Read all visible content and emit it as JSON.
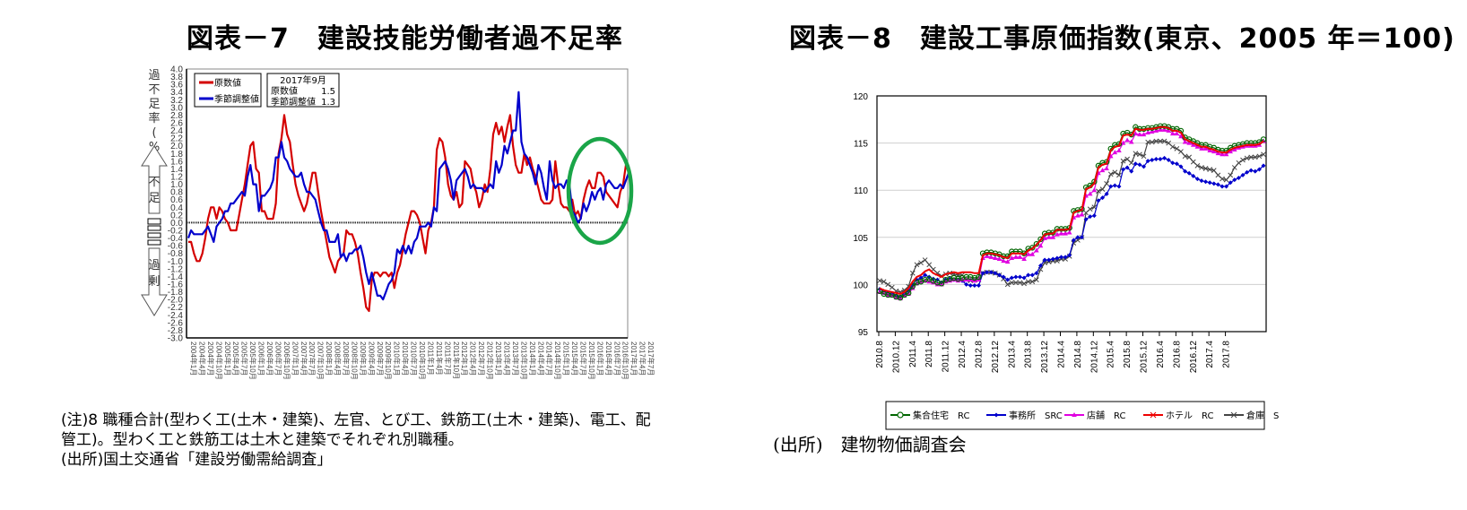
{
  "titles": {
    "left": "図表－7　建設技能労働者過不足率",
    "right": "図表－8　建設工事原価指数(東京、2005 年＝100)"
  },
  "notes": {
    "left_line1": "(注)8 職種合計(型わく工(土木・建築)、左官、とび工、鉄筋工(土木・建築)、電工、配",
    "left_line2": "管工)。型わく工と鉄筋工は土木と建築でそれぞれ別職種。",
    "left_line3": "(出所)国土交通省「建設労働需給調査」",
    "right_source": "(出所)　建物物価調査会"
  },
  "chart_data": [
    {
      "type": "line",
      "title": "図表－7　建設技能労働者過不足率",
      "ylabel": "過不足率(%)",
      "ylim": [
        -3.0,
        4.0
      ],
      "ytick_step": 0.2,
      "side_labels": {
        "up": "不足",
        "down": "過剰"
      },
      "x_start": "2004年1月",
      "x_end": "2017年9月",
      "x_tick_labels": [
        "2004年1月",
        "2004年4月",
        "2004年7月",
        "2004年10月",
        "2005年1月",
        "2005年4月",
        "2005年7月",
        "2005年10月",
        "2006年1月",
        "2006年4月",
        "2006年7月",
        "2006年10月",
        "2007年1月",
        "2007年4月",
        "2007年7月",
        "2007年10月",
        "2008年1月",
        "2008年4月",
        "2008年7月",
        "2008年10月",
        "2009年1月",
        "2009年4月",
        "2009年7月",
        "2009年10月",
        "2010年1月",
        "2010年4月",
        "2010年7月",
        "2010年10月",
        "2011年1月",
        "2011年4月",
        "2011年7月",
        "2011年10月",
        "2012年1月",
        "2012年4月",
        "2012年7月",
        "2012年10月",
        "2013年1月",
        "2013年4月",
        "2013年7月",
        "2013年10月",
        "2014年1月",
        "2014年4月",
        "2014年7月",
        "2014年10月",
        "2015年1月",
        "2015年4月",
        "2015年7月",
        "2015年10月",
        "2016年1月",
        "2016年4月",
        "2016年7月",
        "2016年10月",
        "2017年1月",
        "2017年4月",
        "2017年7月"
      ],
      "legend": [
        "原数値",
        "季節調整値"
      ],
      "annotation": {
        "heading": "2017年9月",
        "rows": [
          {
            "label": "原数値",
            "value": "1.5"
          },
          {
            "label": "季節調整値",
            "value": "1.3"
          }
        ]
      },
      "highlight": "green ellipse around 2016-2017",
      "series": [
        {
          "name": "原数値",
          "color": "#d40000",
          "values": [
            -0.5,
            -0.5,
            -0.8,
            -1.0,
            -1.0,
            -0.8,
            -0.4,
            0.1,
            0.4,
            0.4,
            0.1,
            0.4,
            0.3,
            0.1,
            0.0,
            -0.2,
            -0.2,
            -0.2,
            0.2,
            0.6,
            1.0,
            1.5,
            2.0,
            2.1,
            1.4,
            1.3,
            0.3,
            0.3,
            0.1,
            0.1,
            0.1,
            0.5,
            1.8,
            2.2,
            2.8,
            2.3,
            2.1,
            1.5,
            1.0,
            0.7,
            0.5,
            0.3,
            0.5,
            0.9,
            1.3,
            1.3,
            0.8,
            0.3,
            -0.1,
            -0.5,
            -0.9,
            -1.1,
            -1.3,
            -1.0,
            -0.9,
            -0.8,
            -0.2,
            -0.3,
            -0.3,
            -0.5,
            -0.8,
            -1.3,
            -1.7,
            -2.2,
            -2.3,
            -1.5,
            -1.3,
            -1.3,
            -1.4,
            -1.3,
            -1.3,
            -1.4,
            -1.3,
            -1.7,
            -1.3,
            -1.1,
            -0.7,
            -0.3,
            0.0,
            0.3,
            0.3,
            0.2,
            0.0,
            -0.4,
            -0.8,
            -0.2,
            0.0,
            0.4,
            1.9,
            2.2,
            2.1,
            1.7,
            1.0,
            0.7,
            0.6,
            0.8,
            0.4,
            0.5,
            1.6,
            1.5,
            1.4,
            1.0,
            0.8,
            0.4,
            0.6,
            1.0,
            0.8,
            1.4,
            2.3,
            2.6,
            2.3,
            2.5,
            2.1,
            2.5,
            2.8,
            2.0,
            1.5,
            1.3,
            1.3,
            1.8,
            1.5,
            1.7,
            1.4,
            1.2,
            0.9,
            0.6,
            0.5,
            0.5,
            0.5,
            0.6,
            1.6,
            1.0,
            0.5,
            0.4,
            0.4,
            0.3,
            0.6,
            0.2,
            0.3,
            0.1,
            0.6,
            0.9,
            1.1,
            0.9,
            0.9,
            1.3,
            1.3,
            1.2,
            0.8,
            0.7,
            0.6,
            0.5,
            0.4,
            0.8,
            1.0,
            1.5
          ]
        },
        {
          "name": "季節調整値",
          "color": "#0000cc",
          "values": [
            -0.4,
            -0.2,
            -0.3,
            -0.3,
            -0.3,
            -0.3,
            -0.2,
            -0.1,
            -0.3,
            -0.5,
            -0.1,
            0.0,
            0.1,
            0.3,
            0.3,
            0.5,
            0.5,
            0.6,
            0.7,
            0.8,
            0.7,
            1.2,
            1.5,
            1.0,
            1.0,
            0.3,
            0.7,
            0.7,
            0.8,
            0.9,
            1.1,
            1.7,
            1.7,
            2.1,
            1.7,
            1.6,
            1.4,
            1.3,
            1.2,
            1.2,
            1.3,
            1.0,
            0.8,
            0.8,
            0.7,
            0.6,
            0.3,
            0.0,
            -0.2,
            -0.2,
            -0.5,
            -0.5,
            -0.5,
            -0.3,
            -0.9,
            -0.8,
            -1.0,
            -0.8,
            -0.8,
            -0.7,
            -0.7,
            -0.6,
            -0.9,
            -1.3,
            -1.6,
            -1.3,
            -1.6,
            -1.9,
            -1.9,
            -2.0,
            -1.8,
            -1.6,
            -1.5,
            -1.3,
            -0.7,
            -0.8,
            -0.6,
            -0.8,
            -0.6,
            -0.8,
            -0.5,
            -0.4,
            -0.1,
            -0.1,
            -0.1,
            0.0,
            -0.1,
            0.4,
            0.3,
            1.4,
            1.5,
            1.6,
            1.4,
            1.1,
            0.6,
            1.1,
            1.2,
            1.3,
            1.4,
            1.2,
            0.9,
            1.0,
            0.9,
            0.9,
            0.9,
            0.8,
            0.9,
            1.0,
            0.9,
            1.6,
            1.3,
            1.5,
            2.0,
            1.8,
            2.1,
            2.4,
            2.4,
            3.4,
            2.1,
            1.8,
            1.7,
            1.5,
            1.3,
            1.0,
            1.5,
            1.3,
            0.9,
            0.6,
            1.6,
            1.1,
            0.9,
            1.0,
            1.0,
            0.9,
            1.1,
            1.0,
            0.3,
            0.2,
            0.0,
            0.1,
            0.5,
            0.3,
            0.5,
            0.8,
            0.6,
            0.8,
            0.9,
            0.6,
            1.0,
            1.1,
            1.0,
            0.9,
            0.9,
            1.0,
            0.9,
            1.1,
            1.3
          ]
        }
      ]
    },
    {
      "type": "line",
      "title": "図表－8　建設工事原価指数(東京、2005 年＝100)",
      "ylim": [
        95,
        120
      ],
      "yticks": [
        95,
        100,
        105,
        110,
        115,
        120
      ],
      "grid": true,
      "x_tick_labels": [
        "2010.8",
        "2010.12",
        "2011.4",
        "2011.8",
        "2011.12",
        "2012.4",
        "2012.8",
        "2012.12",
        "2013.4",
        "2013.8",
        "2013.12",
        "2014.4",
        "2014.8",
        "2014.12",
        "2015.4",
        "2015.8",
        "2015.12",
        "2016.4",
        "2016.8",
        "2016.12",
        "2017.4",
        "2017.8"
      ],
      "x_start": "2010.8",
      "x_end": "2017.9",
      "legend_position": "bottom",
      "series": [
        {
          "name": "集合住宅　RC",
          "color": "#006600",
          "marker": "circle",
          "values": [
            99.3,
            99.0,
            98.9,
            98.9,
            98.7,
            98.6,
            98.9,
            99.1,
            99.8,
            100.2,
            100.3,
            100.5,
            100.6,
            100.4,
            100.2,
            100.1,
            100.5,
            100.6,
            100.7,
            100.6,
            100.7,
            100.8,
            100.8,
            100.7,
            100.8,
            103.3,
            103.4,
            103.4,
            103.3,
            103.2,
            103.0,
            103.0,
            103.5,
            103.5,
            103.5,
            103.3,
            103.8,
            103.9,
            104.3,
            104.8,
            105.4,
            105.5,
            105.5,
            105.9,
            105.9,
            105.9,
            106.0,
            107.8,
            107.9,
            108.0,
            110.3,
            110.5,
            110.9,
            112.6,
            112.9,
            113.0,
            114.4,
            114.8,
            114.9,
            116.0,
            116.1,
            115.9,
            116.7,
            116.5,
            116.5,
            116.6,
            116.6,
            116.7,
            116.8,
            116.8,
            116.7,
            116.5,
            116.5,
            116.3,
            115.6,
            115.4,
            115.2,
            115.0,
            114.8,
            114.8,
            114.6,
            114.5,
            114.3,
            114.2,
            114.2,
            114.5,
            114.7,
            114.8,
            114.9,
            115.0,
            115.0,
            115.0,
            115.1,
            115.4
          ]
        },
        {
          "name": "事務所　SRC",
          "color": "#0000cc",
          "marker": "diamond",
          "values": [
            99.5,
            99.3,
            99.1,
            99.0,
            98.8,
            98.7,
            99.0,
            99.3,
            100.0,
            100.5,
            100.7,
            101.0,
            100.8,
            100.6,
            100.5,
            100.2,
            100.5,
            100.6,
            100.5,
            100.5,
            100.4,
            100.0,
            99.9,
            99.9,
            99.9,
            101.2,
            101.3,
            101.3,
            101.2,
            101.0,
            100.8,
            100.5,
            100.7,
            100.8,
            100.8,
            100.7,
            101.0,
            101.0,
            101.2,
            102.0,
            102.6,
            102.6,
            102.7,
            102.8,
            102.9,
            102.9,
            103.1,
            104.7,
            105.0,
            105.0,
            106.9,
            107.2,
            107.3,
            108.9,
            109.2,
            109.6,
            110.4,
            110.5,
            110.4,
            112.2,
            112.4,
            112.0,
            112.8,
            112.7,
            112.5,
            113.1,
            113.2,
            113.3,
            113.3,
            113.4,
            113.2,
            112.9,
            112.8,
            112.5,
            112.0,
            111.8,
            111.5,
            111.2,
            111.0,
            110.9,
            110.8,
            110.7,
            110.6,
            110.4,
            110.4,
            110.8,
            111.1,
            111.3,
            111.6,
            111.9,
            112.1,
            112.0,
            112.2,
            112.6
          ]
        },
        {
          "name": "店舗　RC",
          "color": "#e000e0",
          "marker": "triangle",
          "values": [
            99.2,
            99.1,
            98.9,
            98.8,
            98.6,
            98.5,
            98.8,
            99.0,
            99.6,
            100.1,
            100.3,
            100.4,
            100.3,
            100.2,
            100.0,
            100.0,
            100.3,
            100.4,
            100.5,
            100.4,
            100.5,
            100.5,
            100.5,
            100.4,
            100.5,
            102.8,
            103.0,
            102.9,
            102.8,
            102.7,
            102.5,
            102.4,
            102.8,
            102.9,
            102.9,
            102.7,
            103.2,
            103.2,
            103.6,
            104.1,
            104.9,
            105.0,
            105.0,
            105.3,
            105.4,
            105.4,
            105.5,
            107.1,
            107.3,
            107.4,
            109.4,
            109.6,
            110.0,
            111.8,
            112.1,
            112.3,
            113.6,
            114.0,
            114.2,
            115.0,
            115.3,
            115.1,
            116.0,
            115.9,
            115.9,
            116.1,
            116.2,
            116.3,
            116.4,
            116.4,
            116.3,
            116.0,
            116.0,
            115.7,
            115.1,
            115.0,
            114.8,
            114.6,
            114.4,
            114.4,
            114.2,
            114.1,
            113.9,
            113.8,
            113.8,
            114.1,
            114.3,
            114.5,
            114.6,
            114.7,
            114.7,
            114.7,
            114.8,
            115.2
          ]
        },
        {
          "name": "ホテル　RC",
          "color": "#ee0000",
          "marker": "star",
          "values": [
            99.6,
            99.4,
            99.3,
            99.2,
            99.1,
            99.0,
            99.2,
            99.6,
            100.3,
            100.8,
            101.0,
            101.4,
            101.6,
            101.2,
            101.0,
            100.8,
            101.1,
            101.2,
            101.3,
            101.2,
            101.3,
            101.3,
            101.3,
            101.2,
            101.2,
            103.1,
            103.3,
            103.3,
            103.2,
            103.1,
            102.9,
            102.8,
            103.3,
            103.3,
            103.3,
            103.2,
            103.6,
            103.8,
            104.2,
            104.7,
            105.3,
            105.4,
            105.4,
            105.8,
            105.8,
            105.8,
            105.9,
            107.6,
            107.8,
            107.9,
            110.1,
            110.3,
            110.7,
            112.4,
            112.7,
            112.8,
            114.2,
            114.6,
            114.7,
            115.8,
            115.9,
            115.8,
            116.5,
            116.4,
            116.4,
            116.5,
            116.5,
            116.6,
            116.7,
            116.7,
            116.6,
            116.3,
            116.3,
            116.1,
            115.4,
            115.2,
            115.0,
            114.8,
            114.6,
            114.6,
            114.4,
            114.3,
            114.1,
            114.0,
            114.0,
            114.3,
            114.5,
            114.6,
            114.7,
            114.8,
            114.8,
            114.8,
            114.9,
            115.2
          ]
        },
        {
          "name": "倉庫　S",
          "color": "#444444",
          "marker": "x",
          "values": [
            100.4,
            100.3,
            100.0,
            99.7,
            99.3,
            99.2,
            99.4,
            99.8,
            101.2,
            102.1,
            102.3,
            102.6,
            102.1,
            101.6,
            101.2,
            100.9,
            101.1,
            101.2,
            101.1,
            101.0,
            101.0,
            100.5,
            100.4,
            100.5,
            100.5,
            101.2,
            101.3,
            101.3,
            101.2,
            101.0,
            100.6,
            100.0,
            100.2,
            100.2,
            100.2,
            100.1,
            100.3,
            100.3,
            100.5,
            101.6,
            102.3,
            102.4,
            102.5,
            102.5,
            102.7,
            102.7,
            103.0,
            104.4,
            104.7,
            105.0,
            107.6,
            108.0,
            108.2,
            109.9,
            110.1,
            110.7,
            111.7,
            111.9,
            111.6,
            113.1,
            113.3,
            112.9,
            113.9,
            113.8,
            113.6,
            115.1,
            115.1,
            115.2,
            115.2,
            115.2,
            115.0,
            114.6,
            114.4,
            114.1,
            113.6,
            113.5,
            113.0,
            112.6,
            112.4,
            112.3,
            112.2,
            112.1,
            111.6,
            111.2,
            111.1,
            111.6,
            112.4,
            112.9,
            113.2,
            113.4,
            113.5,
            113.5,
            113.6,
            113.8
          ]
        }
      ]
    }
  ]
}
